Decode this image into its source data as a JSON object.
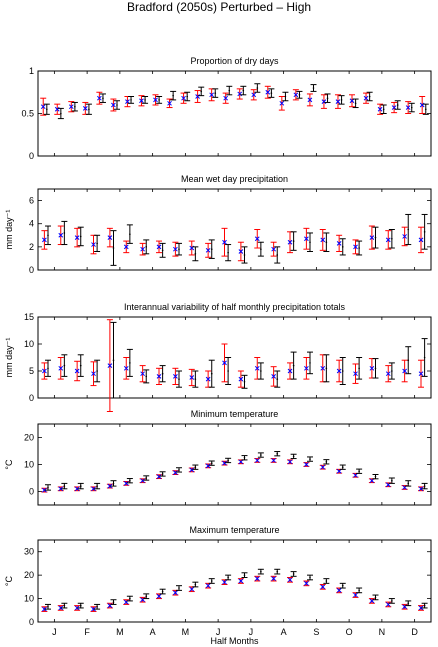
{
  "figure": {
    "title": "Bradford (2050s) Perturbed – High",
    "xlabel": "Half Months",
    "month_labels": [
      "J",
      "F",
      "M",
      "A",
      "M",
      "J",
      "J",
      "A",
      "S",
      "O",
      "N",
      "D"
    ]
  },
  "colors": {
    "red_series": "#ff0000",
    "black_series": "#000000",
    "marker": "#0000ff"
  },
  "chart_data": [
    {
      "type": "errorbar",
      "title": "Proportion of dry days",
      "ylabel": "",
      "ylim": [
        0,
        1
      ],
      "yticks": [
        0,
        0.5,
        1
      ],
      "series": [
        {
          "color": "#ff0000",
          "values": [
            0.58,
            0.55,
            0.58,
            0.56,
            0.68,
            0.6,
            0.64,
            0.65,
            0.66,
            0.62,
            0.68,
            0.7,
            0.72,
            0.68,
            0.73,
            0.72,
            0.75,
            0.62,
            0.72,
            0.66,
            0.64,
            0.64,
            0.65,
            0.68,
            0.55,
            0.57,
            0.57,
            0.6
          ],
          "err": [
            0.1,
            0.06,
            0.06,
            0.07,
            0.07,
            0.07,
            0.06,
            0.06,
            0.06,
            0.05,
            0.06,
            0.07,
            0.07,
            0.06,
            0.06,
            0.06,
            0.07,
            0.08,
            0.06,
            0.07,
            0.08,
            0.08,
            0.07,
            0.06,
            0.06,
            0.06,
            0.07,
            0.1
          ]
        },
        {
          "color": "#000000",
          "values": [
            0.55,
            0.5,
            0.58,
            0.55,
            0.68,
            0.6,
            0.66,
            0.66,
            0.66,
            0.71,
            0.7,
            0.76,
            0.74,
            0.77,
            0.77,
            0.8,
            0.74,
            0.7,
            0.72,
            0.8,
            0.68,
            0.66,
            0.62,
            0.7,
            0.55,
            0.6,
            0.57,
            0.55
          ],
          "err": [
            0.06,
            0.06,
            0.05,
            0.06,
            0.05,
            0.05,
            0.04,
            0.04,
            0.04,
            0.05,
            0.05,
            0.05,
            0.05,
            0.05,
            0.05,
            0.05,
            0.05,
            0.05,
            0.04,
            0.04,
            0.05,
            0.05,
            0.05,
            0.05,
            0.05,
            0.05,
            0.05,
            0.06
          ]
        }
      ]
    },
    {
      "type": "errorbar",
      "title": "Mean wet day precipitation",
      "ylabel": "mm day⁻¹",
      "ylim": [
        0,
        7
      ],
      "yticks": [
        0,
        2,
        4,
        6
      ],
      "series": [
        {
          "color": "#ff0000",
          "values": [
            2.6,
            3.0,
            2.8,
            2.2,
            2.8,
            2.0,
            1.8,
            2.0,
            1.8,
            1.9,
            1.7,
            2.4,
            1.6,
            2.7,
            1.8,
            2.4,
            2.7,
            2.6,
            2.3,
            2.0,
            2.8,
            2.6,
            2.9,
            2.6
          ],
          "err": [
            0.8,
            0.8,
            0.8,
            0.8,
            0.8,
            0.5,
            0.5,
            0.5,
            0.6,
            0.6,
            0.6,
            1.2,
            0.8,
            0.8,
            0.6,
            0.9,
            0.9,
            0.9,
            0.7,
            0.6,
            1.0,
            0.8,
            0.8,
            1.1
          ]
        },
        {
          "color": "#000000",
          "values": [
            3.0,
            3.2,
            2.9,
            2.3,
            1.9,
            3.1,
            2.0,
            1.7,
            1.8,
            1.4,
            1.8,
            1.5,
            1.3,
            1.8,
            1.3,
            2.5,
            2.4,
            2.4,
            2.0,
            1.9,
            2.8,
            2.7,
            3.5,
            3.3
          ],
          "err": [
            0.8,
            1.0,
            0.8,
            0.7,
            1.5,
            0.8,
            0.6,
            0.6,
            0.5,
            0.6,
            0.8,
            0.7,
            0.7,
            0.6,
            0.7,
            0.8,
            0.8,
            0.8,
            0.7,
            0.6,
            0.9,
            0.8,
            1.3,
            1.5
          ]
        }
      ]
    },
    {
      "type": "errorbar",
      "title": "Interannual variability of half monthly precipitation totals",
      "ylabel": "mm day⁻¹",
      "ylim": [
        0,
        15
      ],
      "yticks": [
        0,
        5,
        10,
        15
      ],
      "series": [
        {
          "color": "#ff0000",
          "values": [
            5.0,
            5.5,
            5.0,
            4.5,
            6.0,
            5.5,
            4.5,
            4.0,
            4.0,
            3.8,
            3.5,
            6.5,
            3.5,
            5.5,
            4.0,
            5.0,
            5.5,
            5.5,
            5.0,
            4.5,
            5.5,
            4.5,
            5.0,
            4.5
          ],
          "err": [
            1.5,
            2.0,
            1.8,
            2.2,
            8.5,
            2.0,
            1.5,
            1.5,
            1.5,
            1.5,
            1.5,
            3.5,
            1.5,
            2.0,
            1.8,
            1.5,
            2.0,
            2.5,
            2.0,
            1.8,
            1.8,
            1.5,
            2.0,
            2.5
          ]
        },
        {
          "color": "#000000",
          "values": [
            5.5,
            6.0,
            6.0,
            5.0,
            7.0,
            6.5,
            4.0,
            4.5,
            3.5,
            3.5,
            4.5,
            5.0,
            3.0,
            5.0,
            3.5,
            6.0,
            6.5,
            5.5,
            5.0,
            5.5,
            5.5,
            5.0,
            7.0,
            7.5
          ],
          "err": [
            1.5,
            2.0,
            2.0,
            2.0,
            7.0,
            2.5,
            1.2,
            1.5,
            1.5,
            1.5,
            2.5,
            2.5,
            1.2,
            1.5,
            1.5,
            2.5,
            2.0,
            2.5,
            2.5,
            2.0,
            1.8,
            1.5,
            2.5,
            3.5
          ]
        }
      ]
    },
    {
      "type": "errorbar",
      "title": "Minimum temperature",
      "ylabel": "°C",
      "ylim": [
        -5,
        25
      ],
      "yticks": [
        0,
        10,
        20
      ],
      "series": [
        {
          "color": "#ff0000",
          "values": [
            0.5,
            1.0,
            1.0,
            1.0,
            2.0,
            3.0,
            4.0,
            5.5,
            7.0,
            8.0,
            9.5,
            10.5,
            11.0,
            11.5,
            11.5,
            11.0,
            10.0,
            9.0,
            7.5,
            6.0,
            4.0,
            2.5,
            1.5,
            1.0
          ],
          "err": [
            0.7,
            0.7,
            0.7,
            0.7,
            0.7,
            0.7,
            0.7,
            0.7,
            0.7,
            0.7,
            0.7,
            0.7,
            0.7,
            0.7,
            0.7,
            0.7,
            0.7,
            0.7,
            0.7,
            0.7,
            0.7,
            0.7,
            0.7,
            0.7
          ]
        },
        {
          "color": "#000000",
          "values": [
            1.5,
            2.0,
            2.0,
            2.0,
            3.0,
            4.0,
            5.0,
            6.5,
            8.0,
            9.0,
            10.5,
            11.5,
            12.5,
            13.5,
            14.0,
            13.0,
            12.0,
            11.0,
            9.0,
            7.5,
            5.5,
            4.0,
            3.0,
            2.0
          ],
          "err": [
            1.0,
            1.0,
            1.0,
            1.0,
            1.0,
            0.8,
            0.8,
            0.8,
            0.8,
            0.8,
            0.8,
            0.8,
            0.8,
            0.8,
            0.8,
            0.8,
            0.8,
            0.8,
            0.8,
            0.8,
            0.8,
            1.0,
            1.0,
            1.0
          ]
        }
      ]
    },
    {
      "type": "errorbar",
      "title": "Maximum temperature",
      "ylabel": "°C",
      "ylim": [
        0,
        35
      ],
      "yticks": [
        0,
        10,
        20,
        30
      ],
      "series": [
        {
          "color": "#ff0000",
          "values": [
            5.5,
            6.0,
            6.0,
            5.5,
            7.0,
            8.5,
            9.5,
            11.0,
            12.5,
            14.0,
            15.5,
            17.0,
            17.5,
            18.5,
            18.5,
            18.0,
            16.5,
            15.0,
            13.5,
            11.5,
            9.0,
            7.5,
            6.5,
            6.0
          ],
          "err": [
            1.0,
            1.0,
            1.0,
            1.0,
            1.0,
            1.0,
            1.0,
            1.0,
            1.0,
            1.0,
            1.0,
            1.0,
            1.0,
            1.0,
            1.0,
            1.0,
            1.0,
            1.0,
            1.0,
            1.0,
            1.0,
            1.0,
            1.0,
            1.0
          ]
        },
        {
          "color": "#000000",
          "values": [
            6.5,
            7.0,
            7.0,
            6.5,
            8.5,
            10.0,
            11.0,
            13.0,
            14.5,
            16.0,
            17.5,
            19.0,
            20.0,
            21.5,
            21.5,
            20.5,
            19.0,
            17.5,
            15.5,
            13.5,
            10.5,
            9.0,
            8.0,
            7.0
          ],
          "err": [
            1.0,
            1.0,
            1.0,
            1.0,
            1.0,
            1.0,
            1.0,
            1.0,
            1.0,
            1.0,
            1.0,
            1.0,
            1.0,
            1.0,
            1.0,
            1.0,
            1.0,
            1.0,
            1.0,
            1.0,
            1.0,
            1.0,
            1.0,
            1.0
          ]
        }
      ]
    }
  ]
}
